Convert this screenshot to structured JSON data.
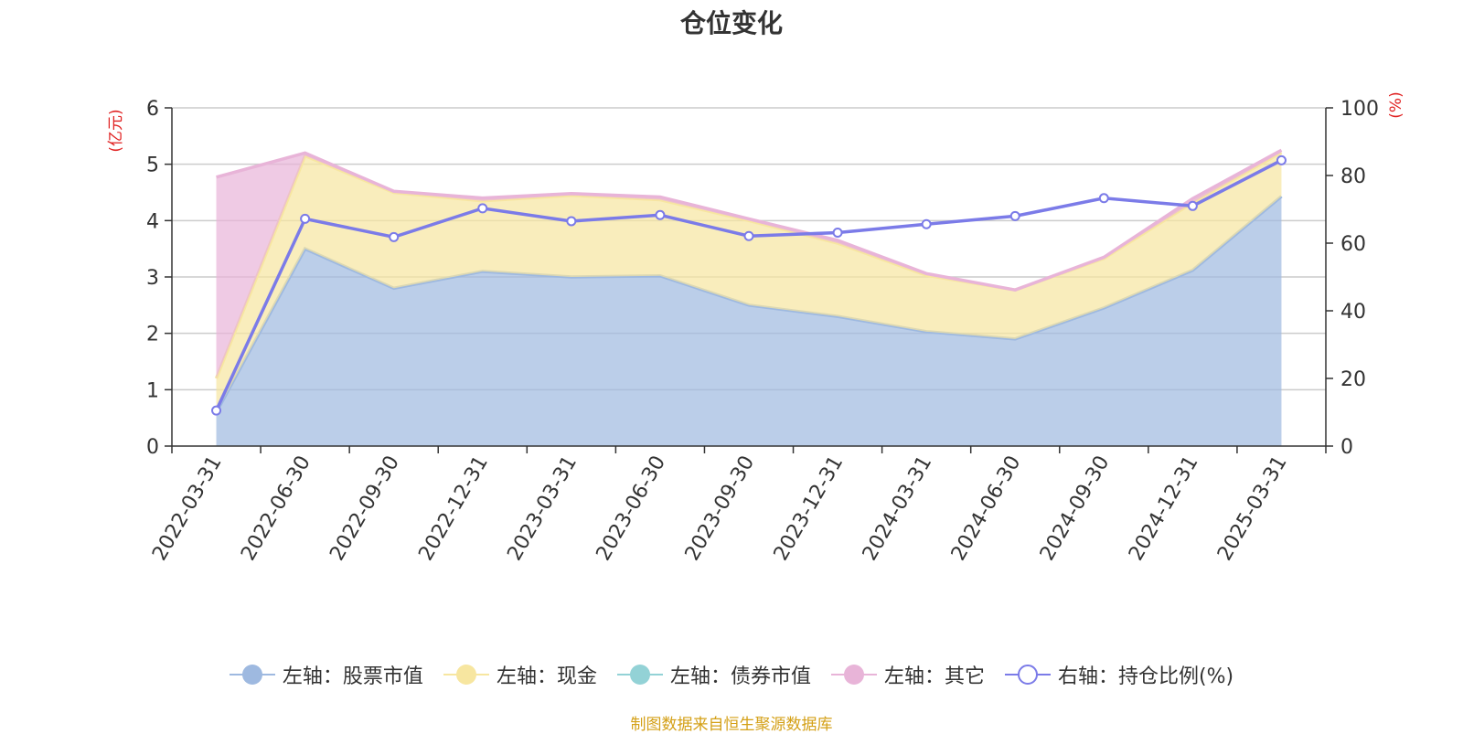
{
  "chart_data": {
    "type": "area",
    "title": "仓位变化",
    "categories": [
      "2022-03-31",
      "2022-06-30",
      "2022-09-30",
      "2022-12-31",
      "2023-03-31",
      "2023-06-30",
      "2023-09-30",
      "2023-12-31",
      "2024-03-31",
      "2024-06-30",
      "2024-09-30",
      "2024-12-31",
      "2025-03-31"
    ],
    "left_axis": {
      "label": "(亿元)",
      "ylim": [
        0,
        6
      ],
      "ticks": [
        "0",
        "1",
        "2",
        "3",
        "4",
        "5",
        "6"
      ]
    },
    "right_axis": {
      "label": "(%)",
      "ylim": [
        0,
        100
      ],
      "ticks": [
        "0",
        "20",
        "40",
        "60",
        "80",
        "100"
      ]
    },
    "series": [
      {
        "name": "左轴：股票市值",
        "axis": "left",
        "stack": true,
        "color": "#9eb9e0",
        "values": [
          0.6,
          3.5,
          2.8,
          3.1,
          3.0,
          3.02,
          2.5,
          2.3,
          2.03,
          1.9,
          2.45,
          3.12,
          4.43
        ]
      },
      {
        "name": "左轴：现金",
        "axis": "left",
        "stack": true,
        "color": "#f7e6a0",
        "values": [
          0.6,
          1.65,
          1.7,
          1.25,
          1.45,
          1.35,
          1.5,
          1.3,
          1.0,
          0.87,
          0.88,
          1.2,
          0.78
        ]
      },
      {
        "name": "左轴：债券市值",
        "axis": "left",
        "stack": true,
        "color": "#93d2d6",
        "values": [
          0,
          0,
          0,
          0,
          0,
          0,
          0,
          0,
          0,
          0,
          0,
          0,
          0
        ]
      },
      {
        "name": "左轴：其它",
        "axis": "left",
        "stack": true,
        "color": "#e8b4d8",
        "values": [
          3.57,
          0.05,
          0.02,
          0.05,
          0.03,
          0.05,
          0.03,
          0.05,
          0.03,
          0.0,
          0.02,
          0.07,
          0.04
        ]
      },
      {
        "name": "右轴：持仓比例(%)",
        "axis": "right",
        "type": "line",
        "color": "#7b7be8",
        "values": [
          10.5,
          67.2,
          61.8,
          70.3,
          66.5,
          68.3,
          62.1,
          63.1,
          65.6,
          68.0,
          73.3,
          71.0,
          84.5
        ]
      }
    ]
  },
  "source_note": "制图数据来自恒生聚源数据库",
  "legend": [
    {
      "label": "左轴：股票市值",
      "color": "#9eb9e0",
      "kind": "filled"
    },
    {
      "label": "左轴：现金",
      "color": "#f7e6a0",
      "kind": "filled"
    },
    {
      "label": "左轴：债券市值",
      "color": "#93d2d6",
      "kind": "filled"
    },
    {
      "label": "左轴：其它",
      "color": "#e8b4d8",
      "kind": "filled"
    },
    {
      "label": "右轴：持仓比例(%)",
      "color": "#7b7be8",
      "kind": "hollow"
    }
  ]
}
